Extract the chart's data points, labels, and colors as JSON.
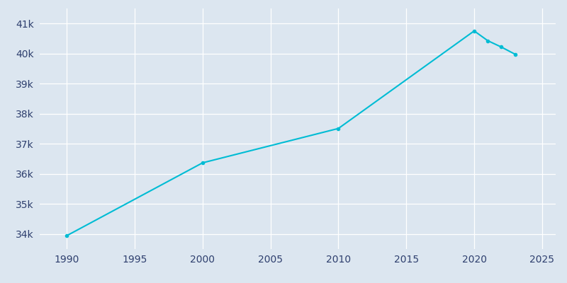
{
  "years": [
    1990,
    2000,
    2010,
    2020,
    2021,
    2022,
    2023
  ],
  "population": [
    33946,
    36368,
    37510,
    40754,
    40429,
    40218,
    39981
  ],
  "line_color": "#00bcd4",
  "bg_color": "#dce6f0",
  "plot_bg_color": "#dce6f0",
  "grid_color": "#ffffff",
  "text_color": "#2e3f6e",
  "xlim": [
    1988,
    2026
  ],
  "ylim": [
    33500,
    41500
  ],
  "xticks": [
    1990,
    1995,
    2000,
    2005,
    2010,
    2015,
    2020,
    2025
  ],
  "ytick_values": [
    34000,
    35000,
    36000,
    37000,
    38000,
    39000,
    40000,
    41000
  ],
  "ytick_labels": [
    "34k",
    "35k",
    "36k",
    "37k",
    "38k",
    "39k",
    "40k",
    "41k"
  ],
  "linewidth": 1.5,
  "marker": "o",
  "marker_size": 3
}
